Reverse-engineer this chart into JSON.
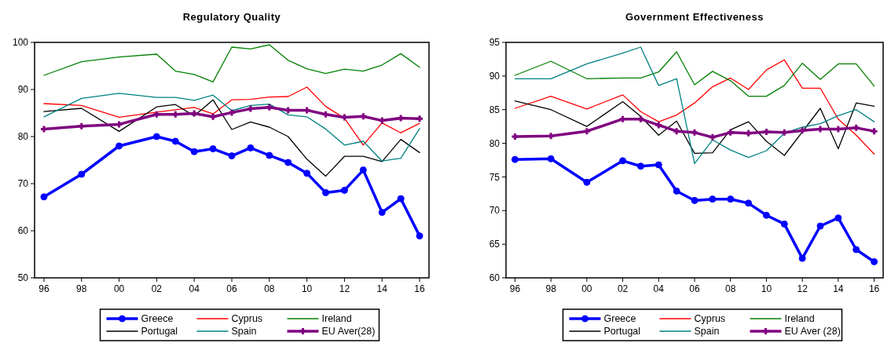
{
  "chart_data": [
    {
      "type": "line",
      "title": "Regulatory Quality",
      "x": [
        1996,
        1998,
        2000,
        2002,
        2003,
        2004,
        2005,
        2006,
        2007,
        2008,
        2009,
        2010,
        2011,
        2012,
        2013,
        2014,
        2015,
        2016
      ],
      "series": [
        {
          "name": "Greece",
          "color": "#0000ff",
          "marker": "circle",
          "values": [
            67.2,
            72,
            78,
            80,
            79,
            76.8,
            77.4,
            75.9,
            77.6,
            76,
            74.5,
            72.2,
            68.1,
            68.6,
            72.9,
            63.9,
            66.8,
            58.9
          ]
        },
        {
          "name": "Cyprus",
          "color": "#ff0000",
          "marker": "none",
          "values": [
            87,
            86.6,
            84.1,
            85.2,
            85.7,
            86.2,
            84.8,
            87.8,
            87.9,
            88.4,
            88.5,
            90.5,
            86.4,
            83.9,
            78.2,
            82.9,
            80.8,
            82.8
          ]
        },
        {
          "name": "Ireland",
          "color": "#008000",
          "marker": "none",
          "values": [
            93,
            95.9,
            96.9,
            97.5,
            93.9,
            93.2,
            91.6,
            99,
            98.6,
            99.5,
            96.2,
            94.4,
            93.4,
            94.3,
            93.9,
            95.2,
            97.6,
            94.7
          ]
        },
        {
          "name": "Portugal",
          "color": "#000000",
          "marker": "none",
          "values": [
            85.3,
            86,
            81.1,
            86.3,
            86.8,
            84.4,
            87.8,
            81.5,
            83.1,
            82,
            80,
            75.2,
            71.6,
            75.8,
            75.8,
            74.7,
            79.4,
            76.6
          ]
        },
        {
          "name": "Spain",
          "color": "#008080",
          "marker": "none",
          "values": [
            84.2,
            88.1,
            89.2,
            88.3,
            88.3,
            87.7,
            88.8,
            85.5,
            86.6,
            86.9,
            84.6,
            84.2,
            81.6,
            78.2,
            79,
            74.8,
            75.4,
            81.7
          ]
        },
        {
          "name": "EU Aver(28)",
          "color": "#800080",
          "marker": "cross",
          "values": [
            81.6,
            82.2,
            82.6,
            84.7,
            84.7,
            84.9,
            84.2,
            85.1,
            85.9,
            86.2,
            85.6,
            85.6,
            84.7,
            84.1,
            84.3,
            83.4,
            83.9,
            83.8
          ]
        }
      ],
      "xlim": [
        1995.5,
        2016.5
      ],
      "xticks": [
        {
          "value": 1996,
          "label": "96"
        },
        {
          "value": 1998,
          "label": "98"
        },
        {
          "value": 2000,
          "label": "00"
        },
        {
          "value": 2002,
          "label": "02"
        },
        {
          "value": 2004,
          "label": "04"
        },
        {
          "value": 2006,
          "label": "06"
        },
        {
          "value": 2008,
          "label": "08"
        },
        {
          "value": 2010,
          "label": "10"
        },
        {
          "value": 2012,
          "label": "12"
        },
        {
          "value": 2014,
          "label": "14"
        },
        {
          "value": 2016,
          "label": "16"
        }
      ],
      "ylim": [
        50,
        100
      ],
      "yticks": [
        50,
        60,
        70,
        80,
        90,
        100
      ],
      "grid": false,
      "legend": "bottom"
    },
    {
      "type": "line",
      "title": "Government Effectiveness",
      "x": [
        1996,
        1998,
        2000,
        2002,
        2003,
        2004,
        2005,
        2006,
        2007,
        2008,
        2009,
        2010,
        2011,
        2012,
        2013,
        2014,
        2015,
        2016
      ],
      "series": [
        {
          "name": "Greece",
          "color": "#0000ff",
          "marker": "circle",
          "values": [
            77.6,
            77.7,
            74.2,
            77.4,
            76.6,
            76.8,
            72.9,
            71.5,
            71.7,
            71.7,
            71.1,
            69.3,
            68,
            62.9,
            67.7,
            68.9,
            64.2,
            62.4
          ]
        },
        {
          "name": "Cyprus",
          "color": "#ff0000",
          "marker": "none",
          "values": [
            85.2,
            87,
            85.1,
            87.2,
            84.7,
            83.2,
            84.2,
            86,
            88.4,
            89.7,
            88,
            90.9,
            92.4,
            88.2,
            88.2,
            83.6,
            81.2,
            78.4
          ]
        },
        {
          "name": "Ireland",
          "color": "#008000",
          "marker": "none",
          "values": [
            90.1,
            92.2,
            89.6,
            89.7,
            89.7,
            90.6,
            93.6,
            88.7,
            90.7,
            89.3,
            87,
            87,
            88.6,
            91.9,
            89.5,
            91.8,
            91.8,
            88.5
          ]
        },
        {
          "name": "Portugal",
          "color": "#000000",
          "marker": "none",
          "values": [
            86.3,
            85,
            82.5,
            86.2,
            84,
            81.2,
            83.3,
            78.5,
            78.6,
            82,
            83.2,
            80.3,
            78.2,
            81.7,
            85.2,
            79.2,
            86,
            85.5
          ]
        },
        {
          "name": "Spain",
          "color": "#008080",
          "marker": "none",
          "values": [
            89.6,
            89.6,
            91.8,
            93.4,
            94.3,
            88.6,
            89.6,
            77,
            80.5,
            79,
            77.9,
            78.9,
            81.5,
            82.4,
            82.9,
            84.1,
            85,
            83.2
          ]
        },
        {
          "name": "EU Aver (28)",
          "color": "#800080",
          "marker": "cross",
          "values": [
            81,
            81.1,
            81.8,
            83.6,
            83.6,
            82.7,
            81.8,
            81.6,
            80.9,
            81.6,
            81.5,
            81.7,
            81.6,
            81.9,
            82.1,
            82.1,
            82.3,
            81.8
          ]
        }
      ],
      "xlim": [
        1995.5,
        2016.5
      ],
      "xticks": [
        {
          "value": 1996,
          "label": "96"
        },
        {
          "value": 1998,
          "label": "98"
        },
        {
          "value": 2000,
          "label": "00"
        },
        {
          "value": 2002,
          "label": "02"
        },
        {
          "value": 2004,
          "label": "04"
        },
        {
          "value": 2006,
          "label": "06"
        },
        {
          "value": 2008,
          "label": "08"
        },
        {
          "value": 2010,
          "label": "10"
        },
        {
          "value": 2012,
          "label": "12"
        },
        {
          "value": 2014,
          "label": "14"
        },
        {
          "value": 2016,
          "label": "16"
        }
      ],
      "ylim": [
        60,
        95
      ],
      "yticks": [
        60,
        65,
        70,
        75,
        80,
        85,
        90,
        95
      ],
      "grid": false,
      "legend": "bottom"
    }
  ]
}
